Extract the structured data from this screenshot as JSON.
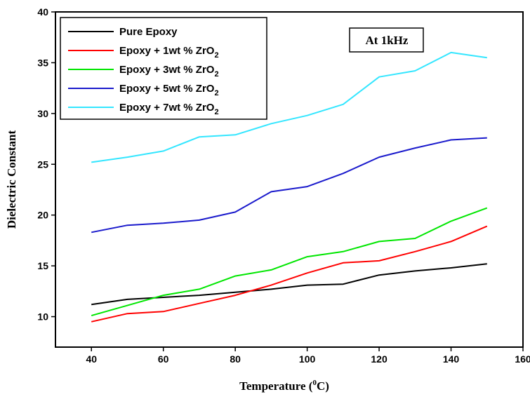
{
  "chart_data": {
    "type": "line",
    "xlabel": {
      "base": "Temperature (",
      "sup": "0",
      "suffix": "C)"
    },
    "ylabel": "Dielectric Constant",
    "xlim": [
      30,
      160
    ],
    "ylim": [
      7,
      40
    ],
    "xticks": [
      40,
      60,
      80,
      100,
      120,
      140,
      160
    ],
    "xtick_labels": [
      "40",
      "60",
      "80",
      "100",
      "120",
      "140",
      "160"
    ],
    "yticks": [
      10,
      15,
      20,
      25,
      30,
      35,
      40
    ],
    "ytick_labels": [
      "10",
      "15",
      "20",
      "25",
      "30",
      "35",
      "40"
    ],
    "grid": false,
    "legend_position": "top-left",
    "annotation": "At 1kHz",
    "x": [
      40,
      50,
      60,
      70,
      80,
      90,
      100,
      110,
      120,
      130,
      140,
      150
    ],
    "series": [
      {
        "name": "Pure Epoxy",
        "legend": {
          "main": "Pure Epoxy",
          "sub": ""
        },
        "color": "#000000",
        "values": [
          11.2,
          11.7,
          11.9,
          12.1,
          12.4,
          12.7,
          13.1,
          13.2,
          14.1,
          14.5,
          14.8,
          15.2
        ]
      },
      {
        "name": "Epoxy + 1wt % ZrO2",
        "legend": {
          "main": "Epoxy + 1wt % ZrO",
          "sub": "2"
        },
        "color": "#ff0000",
        "values": [
          9.5,
          10.3,
          10.5,
          11.3,
          12.1,
          13.1,
          14.3,
          15.3,
          15.5,
          16.4,
          17.4,
          18.9
        ]
      },
      {
        "name": "Epoxy + 3wt % ZrO2",
        "legend": {
          "main": "Epoxy + 3wt % ZrO",
          "sub": "2"
        },
        "color": "#00e600",
        "values": [
          10.1,
          11.1,
          12.1,
          12.7,
          14.0,
          14.6,
          15.9,
          16.4,
          17.4,
          17.7,
          19.4,
          20.7
        ]
      },
      {
        "name": "Epoxy + 5wt % ZrO2",
        "legend": {
          "main": "Epoxy + 5wt % ZrO",
          "sub": "2"
        },
        "color": "#1a1acc",
        "values": [
          18.3,
          19.0,
          19.2,
          19.5,
          20.3,
          22.3,
          22.8,
          24.1,
          25.7,
          26.6,
          27.4,
          27.6
        ]
      },
      {
        "name": "Epoxy + 7wt % ZrO2",
        "legend": {
          "main": "Epoxy + 7wt % ZrO",
          "sub": "2"
        },
        "color": "#33e6ff",
        "values": [
          25.2,
          25.7,
          26.3,
          27.7,
          27.9,
          29.0,
          29.8,
          30.9,
          33.6,
          34.2,
          36.0,
          35.5
        ]
      }
    ]
  }
}
